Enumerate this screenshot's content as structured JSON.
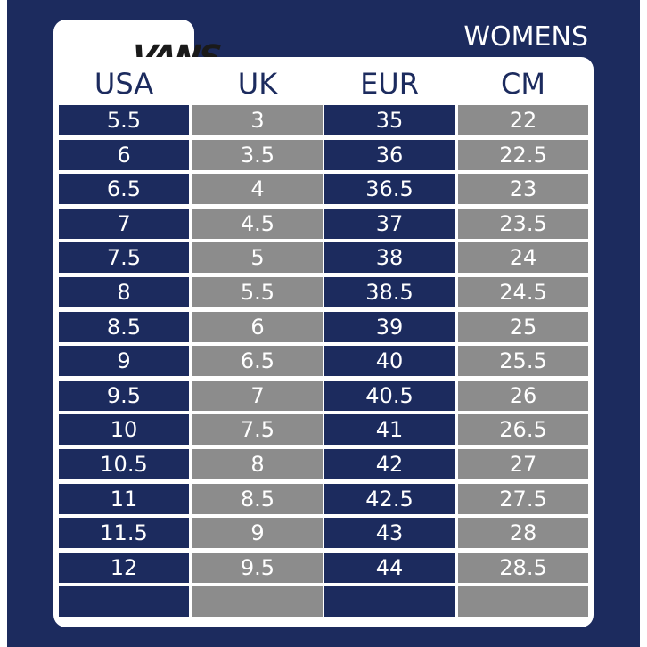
{
  "brand": {
    "logo_text": "VANS"
  },
  "chart": {
    "label": "WOMENS"
  },
  "columns": [
    {
      "header": "USA",
      "values": [
        "5.5",
        "6",
        "6.5",
        "7",
        "7.5",
        "8",
        "8.5",
        "9",
        "9.5",
        "10",
        "10.5",
        "11",
        "11.5",
        "12",
        ""
      ]
    },
    {
      "header": "UK",
      "values": [
        "3",
        "3.5",
        "4",
        "4.5",
        "5",
        "5.5",
        "6",
        "6.5",
        "7",
        "7.5",
        "8",
        "8.5",
        "9",
        "9.5",
        ""
      ]
    },
    {
      "header": "EUR",
      "values": [
        "35",
        "36",
        "36.5",
        "37",
        "38",
        "38.5",
        "39",
        "40",
        "40.5",
        "41",
        "42",
        "42.5",
        "43",
        "44",
        ""
      ]
    },
    {
      "header": "CM",
      "values": [
        "22",
        "22.5",
        "23",
        "23.5",
        "24",
        "24.5",
        "25",
        "25.5",
        "26",
        "26.5",
        "27",
        "27.5",
        "28",
        "28.5",
        ""
      ]
    }
  ],
  "colors": {
    "navy": "#1c2b5e",
    "gray": "#8c8c8c",
    "white": "#ffffff"
  }
}
